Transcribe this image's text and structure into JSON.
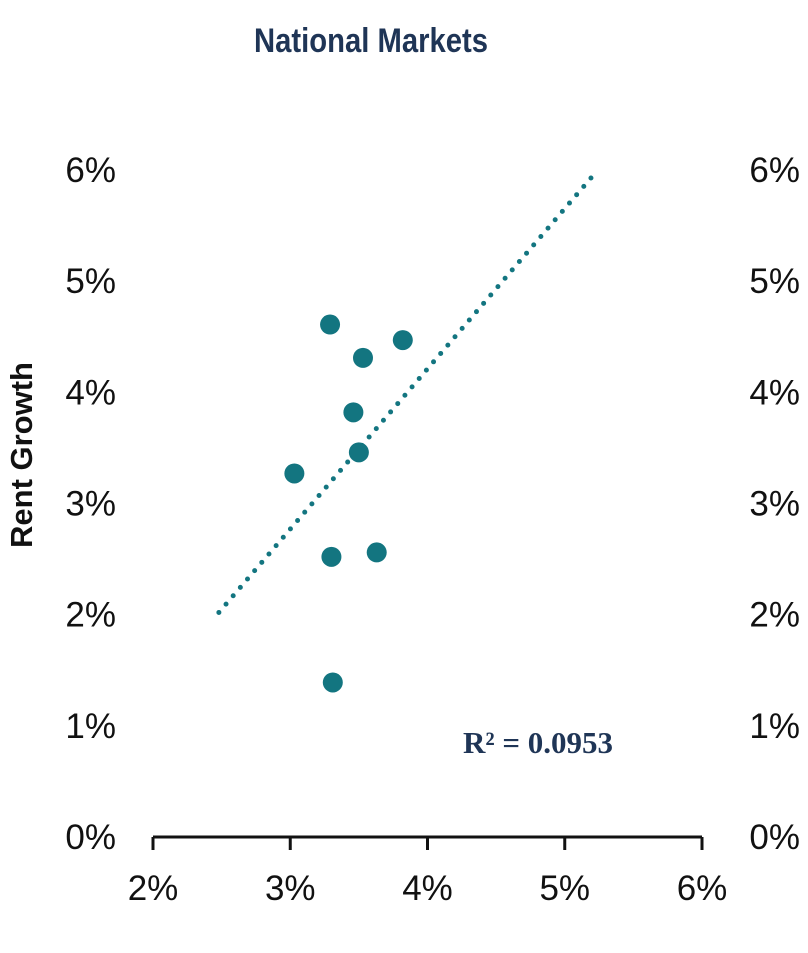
{
  "chart_data": {
    "type": "scatter",
    "title": "National Markets",
    "xlabel": "",
    "ylabel": "Rent Growth",
    "xlim": [
      0.02,
      0.06
    ],
    "ylim": [
      0.0,
      0.06
    ],
    "x_ticks": [
      "2%",
      "3%",
      "4%",
      "5%",
      "6%"
    ],
    "y_ticks_left": [
      "0%",
      "1%",
      "2%",
      "3%",
      "4%",
      "5%",
      "6%"
    ],
    "y_ticks_right": [
      "0%",
      "1%",
      "2%",
      "3%",
      "4%",
      "5%",
      "6%"
    ],
    "points": [
      {
        "x": 0.0329,
        "y": 0.0461
      },
      {
        "x": 0.0382,
        "y": 0.0447
      },
      {
        "x": 0.0353,
        "y": 0.0431
      },
      {
        "x": 0.0346,
        "y": 0.0382
      },
      {
        "x": 0.035,
        "y": 0.0346
      },
      {
        "x": 0.0303,
        "y": 0.0327
      },
      {
        "x": 0.0363,
        "y": 0.0256
      },
      {
        "x": 0.033,
        "y": 0.0252
      },
      {
        "x": 0.0331,
        "y": 0.0139
      }
    ],
    "trendline": {
      "style": "dotted",
      "start": {
        "x": 0.0248,
        "y": 0.0202
      },
      "end": {
        "x": 0.0522,
        "y": 0.0597
      }
    },
    "annotation": "R² = 0.0953",
    "grid": false,
    "colors": {
      "points": "#137580",
      "trendline": "#137580",
      "title": "#1f3556",
      "axis": "#111111"
    }
  }
}
